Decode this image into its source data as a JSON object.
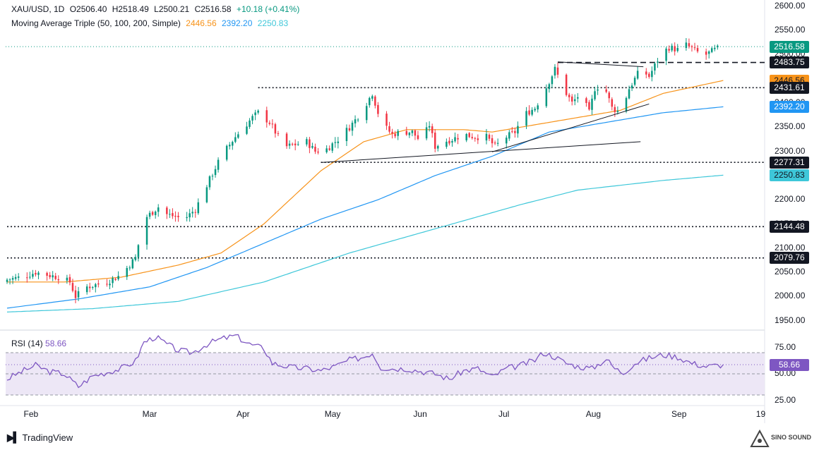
{
  "header": {
    "symbol": "XAU/USD, 1D",
    "open": "O2506.40",
    "high": "H2518.49",
    "low": "L2500.21",
    "close": "C2516.58",
    "change": "+10.18 (+0.41%)",
    "ma_label": "Moving Average Triple (50, 100, 200, Simple)",
    "ma50_value": "2446.56",
    "ma100_value": "2392.20",
    "ma200_value": "2250.83"
  },
  "rsi_header": {
    "label": "RSI (14)",
    "value": "58.66"
  },
  "colors": {
    "up": "#089981",
    "down": "#f23645",
    "ma50": "#f7931a",
    "ma100": "#2196f3",
    "ma200": "#3ec7d9",
    "rsi": "#7e57c2",
    "rsi_band": "#ede7f6",
    "last_price": "#089981"
  },
  "price_axis_ticks": [
    "2600.00",
    "2550.00",
    "2500.00",
    "2450.00",
    "2400.00",
    "2350.00",
    "2300.00",
    "2250.00",
    "2200.00",
    "2150.00",
    "2100.00",
    "2050.00",
    "2000.00",
    "1950.00"
  ],
  "rsi_axis_ticks": [
    "75.00",
    "50.00",
    "25.00"
  ],
  "month_labels": [
    "Feb",
    "Mar",
    "Apr",
    "May",
    "Jun",
    "Jul",
    "Aug",
    "Sep",
    "19"
  ],
  "price_labels": [
    {
      "name": "last-price-label",
      "text": "2516.58",
      "value": 2516.58,
      "bg": "#089981",
      "fg": "#ffffff"
    },
    {
      "name": "level-label-2483",
      "text": "2483.75",
      "value": 2483.75,
      "bg": "#131722",
      "fg": "#ffffff"
    },
    {
      "name": "ma50-label",
      "text": "2446.56",
      "value": 2446.56,
      "bg": "#f7931a",
      "fg": "#131722"
    },
    {
      "name": "level-label-2431",
      "text": "2431.61",
      "value": 2431.61,
      "bg": "#131722",
      "fg": "#ffffff"
    },
    {
      "name": "ma100-label",
      "text": "2392.20",
      "value": 2392.2,
      "bg": "#2196f3",
      "fg": "#ffffff"
    },
    {
      "name": "level-label-2277",
      "text": "2277.31",
      "value": 2277.31,
      "bg": "#131722",
      "fg": "#ffffff"
    },
    {
      "name": "ma200-label",
      "text": "2250.83",
      "value": 2250.83,
      "bg": "#3ec7d9",
      "fg": "#131722"
    },
    {
      "name": "level-label-2144",
      "text": "2144.48",
      "value": 2144.48,
      "bg": "#131722",
      "fg": "#ffffff"
    },
    {
      "name": "level-label-2079",
      "text": "2079.76",
      "value": 2079.76,
      "bg": "#131722",
      "fg": "#ffffff"
    }
  ],
  "rsi_label": {
    "text": "58.66",
    "value": 58.66,
    "bg": "#7e57c2",
    "fg": "#ffffff"
  },
  "footer": {
    "brand": "TradingView"
  },
  "watermark": {
    "text": "SINO SOUND"
  },
  "chart_data": {
    "type": "candlestick",
    "price_ylim": [
      1935,
      2610
    ],
    "rsi_ylim": [
      20,
      90
    ],
    "bars": 266,
    "horizontal_levels": [
      {
        "value": 2483.75,
        "style": "dashed",
        "from_index": 193
      },
      {
        "value": 2431.61,
        "style": "dotted",
        "from_index": 88
      },
      {
        "value": 2277.31,
        "style": "dotted",
        "from_index": 110
      },
      {
        "value": 2144.48,
        "style": "dotted",
        "from_index": 0
      },
      {
        "value": 2079.76,
        "style": "dotted",
        "from_index": 0
      }
    ],
    "trendlines": [
      {
        "from": [
          110,
          2277
        ],
        "to": [
          222,
          2320
        ]
      },
      {
        "from": [
          170,
          2299
        ],
        "to": [
          225,
          2398
        ]
      },
      {
        "from": [
          193,
          2485
        ],
        "to": [
          223,
          2475
        ]
      }
    ],
    "anchors": [
      [
        0,
        2035
      ],
      [
        5,
        2040
      ],
      [
        10,
        2050
      ],
      [
        18,
        2040
      ],
      [
        22,
        2030
      ],
      [
        24,
        2000
      ],
      [
        28,
        2020
      ],
      [
        35,
        2030
      ],
      [
        40,
        2045
      ],
      [
        45,
        2080
      ],
      [
        48,
        2160
      ],
      [
        53,
        2185
      ],
      [
        56,
        2170
      ],
      [
        62,
        2160
      ],
      [
        66,
        2180
      ],
      [
        70,
        2230
      ],
      [
        75,
        2290
      ],
      [
        80,
        2330
      ],
      [
        86,
        2370
      ],
      [
        88,
        2380
      ],
      [
        92,
        2360
      ],
      [
        95,
        2330
      ],
      [
        98,
        2310
      ],
      [
        105,
        2320
      ],
      [
        108,
        2300
      ],
      [
        112,
        2305
      ],
      [
        116,
        2325
      ],
      [
        120,
        2350
      ],
      [
        124,
        2380
      ],
      [
        126,
        2400
      ],
      [
        128,
        2420
      ],
      [
        131,
        2360
      ],
      [
        135,
        2335
      ],
      [
        138,
        2340
      ],
      [
        142,
        2340
      ],
      [
        145,
        2320
      ],
      [
        148,
        2355
      ],
      [
        150,
        2310
      ],
      [
        153,
        2320
      ],
      [
        156,
        2325
      ],
      [
        160,
        2335
      ],
      [
        164,
        2330
      ],
      [
        168,
        2330
      ],
      [
        171,
        2310
      ],
      [
        175,
        2330
      ],
      [
        178,
        2340
      ],
      [
        181,
        2375
      ],
      [
        185,
        2390
      ],
      [
        188,
        2420
      ],
      [
        192,
        2470
      ],
      [
        195,
        2430
      ],
      [
        198,
        2400
      ],
      [
        201,
        2420
      ],
      [
        204,
        2380
      ],
      [
        206,
        2430
      ],
      [
        209,
        2440
      ],
      [
        212,
        2390
      ],
      [
        215,
        2380
      ],
      [
        218,
        2430
      ],
      [
        222,
        2470
      ],
      [
        225,
        2455
      ],
      [
        229,
        2500
      ],
      [
        232,
        2515
      ],
      [
        235,
        2510
      ],
      [
        238,
        2520
      ],
      [
        242,
        2505
      ],
      [
        245,
        2500
      ],
      [
        248,
        2510
      ],
      [
        251,
        2516.58
      ]
    ],
    "ma50_anchors": [
      [
        0,
        2030
      ],
      [
        20,
        2030
      ],
      [
        40,
        2040
      ],
      [
        60,
        2065
      ],
      [
        75,
        2090
      ],
      [
        90,
        2150
      ],
      [
        110,
        2260
      ],
      [
        125,
        2320
      ],
      [
        140,
        2345
      ],
      [
        160,
        2345
      ],
      [
        170,
        2340
      ],
      [
        180,
        2350
      ],
      [
        200,
        2370
      ],
      [
        215,
        2385
      ],
      [
        230,
        2420
      ],
      [
        251,
        2446.56
      ]
    ],
    "ma100_anchors": [
      [
        0,
        1976
      ],
      [
        25,
        1995
      ],
      [
        50,
        2020
      ],
      [
        70,
        2060
      ],
      [
        90,
        2110
      ],
      [
        110,
        2160
      ],
      [
        130,
        2200
      ],
      [
        150,
        2250
      ],
      [
        170,
        2290
      ],
      [
        190,
        2340
      ],
      [
        210,
        2360
      ],
      [
        230,
        2380
      ],
      [
        251,
        2392.2
      ]
    ],
    "ma200_anchors": [
      [
        0,
        1968
      ],
      [
        30,
        1975
      ],
      [
        60,
        1990
      ],
      [
        90,
        2030
      ],
      [
        120,
        2090
      ],
      [
        150,
        2140
      ],
      [
        180,
        2190
      ],
      [
        200,
        2220
      ],
      [
        230,
        2240
      ],
      [
        251,
        2250.83
      ]
    ],
    "rsi_anchors": [
      [
        0,
        45
      ],
      [
        5,
        52
      ],
      [
        10,
        58
      ],
      [
        15,
        52
      ],
      [
        20,
        50
      ],
      [
        25,
        38
      ],
      [
        30,
        48
      ],
      [
        40,
        55
      ],
      [
        45,
        62
      ],
      [
        48,
        80
      ],
      [
        52,
        85
      ],
      [
        56,
        78
      ],
      [
        60,
        72
      ],
      [
        65,
        70
      ],
      [
        70,
        78
      ],
      [
        75,
        83
      ],
      [
        80,
        86
      ],
      [
        85,
        78
      ],
      [
        90,
        74
      ],
      [
        93,
        60
      ],
      [
        100,
        56
      ],
      [
        105,
        55
      ],
      [
        110,
        53
      ],
      [
        115,
        57
      ],
      [
        120,
        63
      ],
      [
        125,
        66
      ],
      [
        128,
        70
      ],
      [
        131,
        56
      ],
      [
        135,
        55
      ],
      [
        140,
        55
      ],
      [
        150,
        50
      ],
      [
        155,
        45
      ],
      [
        160,
        53
      ],
      [
        165,
        55
      ],
      [
        170,
        47
      ],
      [
        175,
        55
      ],
      [
        180,
        58
      ],
      [
        185,
        63
      ],
      [
        188,
        70
      ],
      [
        192,
        66
      ],
      [
        196,
        60
      ],
      [
        200,
        57
      ],
      [
        205,
        55
      ],
      [
        210,
        64
      ],
      [
        213,
        55
      ],
      [
        216,
        51
      ],
      [
        220,
        60
      ],
      [
        225,
        65
      ],
      [
        230,
        68
      ],
      [
        235,
        66
      ],
      [
        240,
        60
      ],
      [
        245,
        57
      ],
      [
        251,
        58.66
      ]
    ]
  }
}
